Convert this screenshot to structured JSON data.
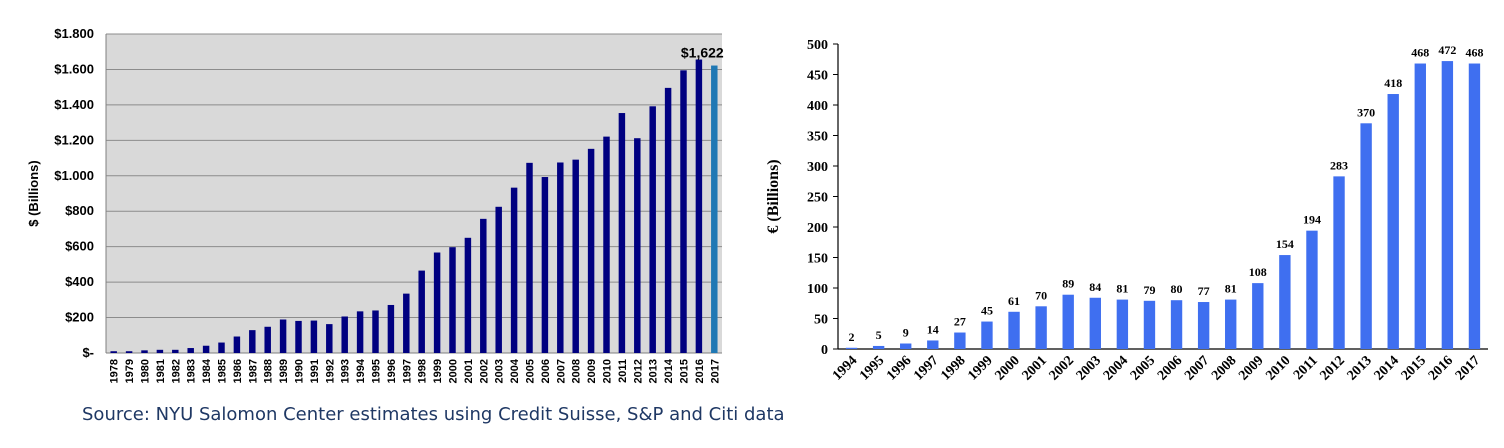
{
  "source_note": "Source: NYU Salomon Center estimates using Credit Suisse, S&P and Citi data",
  "chart_data": [
    {
      "type": "bar",
      "ylabel": "$ (Billions)",
      "ylim": [
        0,
        1800
      ],
      "y_tick_values": [
        0,
        200,
        400,
        600,
        800,
        1000,
        1200,
        1400,
        1600,
        1800
      ],
      "y_tick_labels": [
        "$-",
        "$200",
        "$400",
        "$600",
        "$800",
        "$1.000",
        "$1.200",
        "$1.400",
        "$1.600",
        "$1.800"
      ],
      "categories": [
        "1978",
        "1979",
        "1980",
        "1981",
        "1982",
        "1983",
        "1984",
        "1985",
        "1986",
        "1987",
        "1988",
        "1989",
        "1990",
        "1991",
        "1992",
        "1993",
        "1994",
        "1995",
        "1996",
        "1997",
        "1998",
        "1999",
        "2000",
        "2001",
        "2002",
        "2003",
        "2004",
        "2005",
        "2006",
        "2007",
        "2008",
        "2009",
        "2010",
        "2011",
        "2012",
        "2013",
        "2014",
        "2015",
        "2016",
        "2017"
      ],
      "values": [
        10,
        10,
        15,
        18,
        18,
        28,
        41,
        59,
        93,
        129,
        148,
        189,
        181,
        183,
        163,
        206,
        235,
        240,
        271,
        335,
        465,
        567,
        597,
        650,
        757,
        825,
        933,
        1073,
        993,
        1075,
        1091,
        1152,
        1221,
        1354,
        1212,
        1392,
        1496,
        1595,
        1656,
        1622
      ],
      "highlight_index": 39,
      "highlight_label": "$1,622",
      "bar_color": "#000080",
      "highlight_color": "#1f78b4",
      "plot_background": "#d9d9d9",
      "grid": true
    },
    {
      "type": "bar",
      "ylabel": "€ (Billions)",
      "ylim": [
        0,
        500
      ],
      "y_tick_values": [
        0,
        50,
        100,
        150,
        200,
        250,
        300,
        350,
        400,
        450,
        500
      ],
      "categories": [
        "1994",
        "1995",
        "1996",
        "1997",
        "1998",
        "1999",
        "2000",
        "2001",
        "2002",
        "2003",
        "2004",
        "2005",
        "2006",
        "2007",
        "2008",
        "2009",
        "2010",
        "2011",
        "2012",
        "2013",
        "2014",
        "2015",
        "2016",
        "2017"
      ],
      "values": [
        2,
        5,
        9,
        14,
        27,
        45,
        61,
        70,
        89,
        84,
        81,
        79,
        80,
        77,
        81,
        108,
        154,
        194,
        283,
        370,
        418,
        468,
        472,
        468
      ],
      "data_labels": [
        "2",
        "5",
        "9",
        "14",
        "27",
        "45",
        "61",
        "70",
        "89",
        "84",
        "81",
        "79",
        "80",
        "77",
        "81",
        "108",
        "154",
        "194",
        "283",
        "370",
        "418",
        "468",
        "472",
        "468"
      ],
      "bar_color": "#3f6ff0",
      "grid": false
    }
  ]
}
